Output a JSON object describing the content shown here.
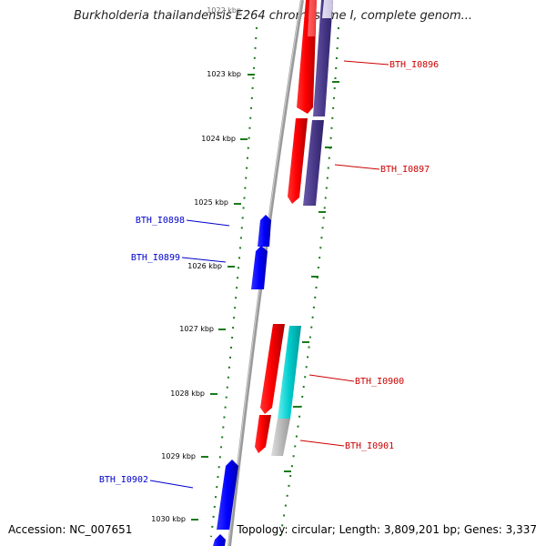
{
  "title": "Burkholderia thailandensis E264 chromosome I, complete genom...",
  "footer": {
    "accession": "Accession: NC_007651",
    "summary": "Topology: circular; Length: 3,809,201 bp; Genes: 3,337"
  },
  "colors": {
    "forward_label": "#cc0000",
    "reverse_label": "#0000cc",
    "tick": "#1a7a1a"
  },
  "ticks": [
    "1022 kbp",
    "1023 kbp",
    "1024 kbp",
    "1025 kbp",
    "1026 kbp",
    "1027 kbp",
    "1028 kbp",
    "1029 kbp",
    "1030 kbp"
  ],
  "genes": [
    {
      "name": "BTH_I0896",
      "strand": "forward"
    },
    {
      "name": "BTH_I0897",
      "strand": "forward"
    },
    {
      "name": "BTH_I0898",
      "strand": "reverse"
    },
    {
      "name": "BTH_I0899",
      "strand": "reverse"
    },
    {
      "name": "BTH_I0900",
      "strand": "forward"
    },
    {
      "name": "BTH_I0901",
      "strand": "forward"
    },
    {
      "name": "BTH_I0902",
      "strand": "reverse"
    }
  ]
}
